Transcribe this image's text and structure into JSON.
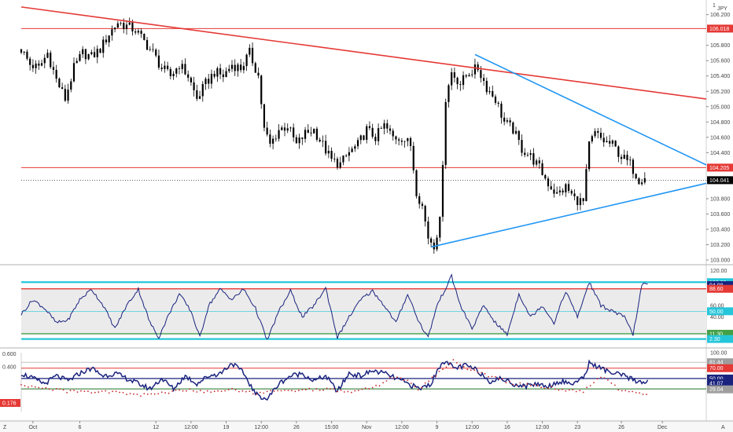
{
  "header": {
    "currency_label": "JPY",
    "scale_marker": "1"
  },
  "colors": {
    "candle": "#000000",
    "resistance": "#e53935",
    "triangle": "#2196f3",
    "oscillator": "#1a237e",
    "overbought": "#26c6da",
    "oversold": "#43a047",
    "dots": "#c62828",
    "last_price_bg": "#000000"
  },
  "chart_data": [
    {
      "type": "candlestick",
      "panel": "price",
      "y_ticks": [
        "106.200",
        "106.018",
        "105.800",
        "105.600",
        "105.400",
        "105.200",
        "105.000",
        "104.800",
        "104.600",
        "104.400",
        "104.205",
        "104.041",
        "103.800",
        "103.600",
        "103.400",
        "103.200",
        "103.000"
      ],
      "ylim": [
        102.99,
        106.35
      ],
      "levels": [
        {
          "name": "resistance-upper",
          "value": 106.018,
          "label": "106.018",
          "color": "#e53935"
        },
        {
          "name": "resistance-lower",
          "value": 104.205,
          "label": "104.205",
          "color": "#e53935"
        },
        {
          "name": "last-price",
          "value": 104.041,
          "label": "104.041",
          "color": "#000000"
        }
      ],
      "trendlines": [
        {
          "name": "descending-resistance",
          "from": [
            0,
            106.3
          ],
          "to": [
            234,
            105.1
          ],
          "color": "#e53935"
        },
        {
          "name": "triangle-upper",
          "from": [
            155,
            105.68
          ],
          "to": [
            234,
            104.24
          ],
          "color": "#2196f3"
        },
        {
          "name": "triangle-lower",
          "from": [
            140,
            103.17
          ],
          "to": [
            234,
            104.0
          ],
          "color": "#2196f3"
        }
      ],
      "anchors": [
        [
          0,
          105.75
        ],
        [
          3,
          105.55
        ],
        [
          6,
          105.5
        ],
        [
          9,
          105.7
        ],
        [
          12,
          105.35
        ],
        [
          15,
          105.1
        ],
        [
          18,
          105.5
        ],
        [
          21,
          105.7
        ],
        [
          24,
          105.65
        ],
        [
          27,
          105.75
        ],
        [
          30,
          105.95
        ],
        [
          33,
          106.1
        ],
        [
          36,
          106.05
        ],
        [
          39,
          106.0
        ],
        [
          42,
          105.85
        ],
        [
          45,
          105.7
        ],
        [
          48,
          105.5
        ],
        [
          51,
          105.4
        ],
        [
          54,
          105.55
        ],
        [
          57,
          105.4
        ],
        [
          60,
          105.1
        ],
        [
          63,
          105.3
        ],
        [
          66,
          105.45
        ],
        [
          69,
          105.4
        ],
        [
          72,
          105.55
        ],
        [
          75,
          105.5
        ],
        [
          78,
          105.7
        ],
        [
          81,
          105.4
        ],
        [
          83,
          104.7
        ],
        [
          85,
          104.5
        ],
        [
          88,
          104.7
        ],
        [
          91,
          104.75
        ],
        [
          94,
          104.5
        ],
        [
          97,
          104.65
        ],
        [
          100,
          104.7
        ],
        [
          103,
          104.5
        ],
        [
          106,
          104.3
        ],
        [
          109,
          104.25
        ],
        [
          112,
          104.4
        ],
        [
          115,
          104.5
        ],
        [
          118,
          104.7
        ],
        [
          121,
          104.6
        ],
        [
          124,
          104.75
        ],
        [
          127,
          104.6
        ],
        [
          130,
          104.6
        ],
        [
          133,
          104.5
        ],
        [
          135,
          103.9
        ],
        [
          137,
          103.7
        ],
        [
          139,
          103.3
        ],
        [
          141,
          103.2
        ],
        [
          143,
          103.5
        ],
        [
          145,
          105.1
        ],
        [
          147,
          105.45
        ],
        [
          150,
          105.3
        ],
        [
          153,
          105.45
        ],
        [
          156,
          105.5
        ],
        [
          159,
          105.25
        ],
        [
          162,
          105.1
        ],
        [
          165,
          104.8
        ],
        [
          168,
          104.7
        ],
        [
          171,
          104.45
        ],
        [
          174,
          104.35
        ],
        [
          177,
          104.2
        ],
        [
          180,
          104.0
        ],
        [
          183,
          103.85
        ],
        [
          186,
          103.95
        ],
        [
          189,
          103.8
        ],
        [
          192,
          103.75
        ],
        [
          194,
          104.5
        ],
        [
          196,
          104.65
        ],
        [
          199,
          104.55
        ],
        [
          202,
          104.5
        ],
        [
          205,
          104.35
        ],
        [
          208,
          104.25
        ],
        [
          211,
          104.05
        ],
        [
          213,
          104.1
        ]
      ],
      "x_range": [
        0,
        234
      ],
      "x_ticks": [
        {
          "x": 4,
          "label": "Oct"
        },
        {
          "x": 20,
          "label": "6"
        },
        {
          "x": 46,
          "label": "12"
        },
        {
          "x": 58,
          "label": "12:00"
        },
        {
          "x": 70,
          "label": "19"
        },
        {
          "x": 82,
          "label": "12:00"
        },
        {
          "x": 94,
          "label": "26"
        },
        {
          "x": 106,
          "label": "15:00"
        },
        {
          "x": 118,
          "label": "Nov"
        },
        {
          "x": 130,
          "label": "12:00"
        },
        {
          "x": 142,
          "label": "9"
        },
        {
          "x": 154,
          "label": "12:00"
        },
        {
          "x": 166,
          "label": "16"
        },
        {
          "x": 178,
          "label": "12:00"
        },
        {
          "x": 190,
          "label": "23"
        },
        {
          "x": 205,
          "label": "26"
        },
        {
          "x": 219,
          "label": "Dec"
        }
      ]
    },
    {
      "type": "line",
      "panel": "oscillator-1",
      "ylim": [
        -5,
        122
      ],
      "y_ticks": [
        "120.00",
        "100.00",
        "94.98",
        "88.60",
        "60.00",
        "50.00",
        "40.00",
        "11.30",
        "2.30"
      ],
      "levels": [
        {
          "name": "upper-band",
          "value": 100,
          "label": "100.00",
          "color": "#26c6da"
        },
        {
          "name": "current",
          "value": 94.98,
          "label": "94.98",
          "color": "#1a237e"
        },
        {
          "name": "overbought",
          "value": 88.6,
          "label": "88.60",
          "color": "#e53935"
        },
        {
          "name": "mid",
          "value": 50,
          "label": "50.00",
          "color": "#26c6da"
        },
        {
          "name": "oversold",
          "value": 11.3,
          "label": "11.30",
          "color": "#43a047"
        },
        {
          "name": "lower-band",
          "value": 2.3,
          "label": "2.30",
          "color": "#26c6da"
        }
      ],
      "anchors": [
        [
          0,
          45
        ],
        [
          4,
          70
        ],
        [
          8,
          55
        ],
        [
          12,
          30
        ],
        [
          16,
          35
        ],
        [
          20,
          70
        ],
        [
          24,
          88
        ],
        [
          28,
          60
        ],
        [
          32,
          20
        ],
        [
          36,
          60
        ],
        [
          40,
          88
        ],
        [
          44,
          30
        ],
        [
          47,
          5
        ],
        [
          50,
          40
        ],
        [
          54,
          80
        ],
        [
          58,
          50
        ],
        [
          61,
          5
        ],
        [
          64,
          60
        ],
        [
          68,
          88
        ],
        [
          72,
          70
        ],
        [
          76,
          88
        ],
        [
          80,
          55
        ],
        [
          84,
          0
        ],
        [
          88,
          50
        ],
        [
          92,
          85
        ],
        [
          96,
          40
        ],
        [
          100,
          60
        ],
        [
          104,
          90
        ],
        [
          108,
          5
        ],
        [
          112,
          40
        ],
        [
          116,
          70
        ],
        [
          120,
          85
        ],
        [
          124,
          60
        ],
        [
          128,
          30
        ],
        [
          132,
          80
        ],
        [
          136,
          30
        ],
        [
          139,
          5
        ],
        [
          142,
          60
        ],
        [
          147,
          110
        ],
        [
          150,
          60
        ],
        [
          154,
          20
        ],
        [
          158,
          60
        ],
        [
          162,
          30
        ],
        [
          166,
          10
        ],
        [
          170,
          80
        ],
        [
          174,
          40
        ],
        [
          178,
          60
        ],
        [
          182,
          30
        ],
        [
          186,
          85
        ],
        [
          190,
          40
        ],
        [
          194,
          100
        ],
        [
          198,
          60
        ],
        [
          202,
          50
        ],
        [
          206,
          40
        ],
        [
          209,
          10
        ],
        [
          212,
          95
        ],
        [
          214,
          98
        ]
      ]
    },
    {
      "type": "line",
      "panel": "oscillator-2",
      "ylim": [
        -14,
        100
      ],
      "left_ticks": [
        "0.600",
        "0.400",
        "0.176"
      ],
      "y_ticks": [
        "100.00",
        "81.44",
        "70.00",
        "50.00",
        "41.07",
        "30.00",
        "29.04"
      ],
      "levels": [
        {
          "name": "upper-ref",
          "value": 81.44,
          "label": "81.44",
          "color": "#9e9e9e"
        },
        {
          "name": "overbought",
          "value": 70,
          "label": "70.00",
          "color": "#e53935"
        },
        {
          "name": "mid",
          "value": 50,
          "label": "50.00",
          "color": "#1a237e"
        },
        {
          "name": "current",
          "value": 41.07,
          "label": "41.07",
          "color": "#1a237e"
        },
        {
          "name": "oversold",
          "value": 30,
          "label": "30.00",
          "color": "#43a047"
        },
        {
          "name": "lower-ref",
          "value": 29.04,
          "label": "29.04",
          "color": "#9e9e9e"
        }
      ],
      "left_value": "0.176",
      "anchors": [
        [
          0,
          60
        ],
        [
          4,
          50
        ],
        [
          8,
          40
        ],
        [
          12,
          55
        ],
        [
          16,
          45
        ],
        [
          20,
          60
        ],
        [
          24,
          70
        ],
        [
          28,
          55
        ],
        [
          32,
          60
        ],
        [
          36,
          50
        ],
        [
          40,
          40
        ],
        [
          44,
          30
        ],
        [
          48,
          50
        ],
        [
          52,
          30
        ],
        [
          56,
          55
        ],
        [
          60,
          40
        ],
        [
          64,
          55
        ],
        [
          68,
          60
        ],
        [
          72,
          80
        ],
        [
          76,
          60
        ],
        [
          80,
          20
        ],
        [
          84,
          10
        ],
        [
          88,
          40
        ],
        [
          92,
          55
        ],
        [
          96,
          60
        ],
        [
          100,
          45
        ],
        [
          104,
          55
        ],
        [
          108,
          25
        ],
        [
          112,
          60
        ],
        [
          116,
          55
        ],
        [
          120,
          65
        ],
        [
          124,
          60
        ],
        [
          128,
          50
        ],
        [
          132,
          40
        ],
        [
          136,
          30
        ],
        [
          140,
          40
        ],
        [
          144,
          85
        ],
        [
          148,
          70
        ],
        [
          152,
          75
        ],
        [
          156,
          65
        ],
        [
          160,
          45
        ],
        [
          164,
          50
        ],
        [
          168,
          40
        ],
        [
          172,
          35
        ],
        [
          176,
          40
        ],
        [
          180,
          35
        ],
        [
          184,
          45
        ],
        [
          188,
          40
        ],
        [
          192,
          50
        ],
        [
          194,
          80
        ],
        [
          198,
          70
        ],
        [
          202,
          60
        ],
        [
          206,
          55
        ],
        [
          210,
          45
        ],
        [
          214,
          43
        ]
      ],
      "dots": [
        [
          0,
          35
        ],
        [
          8,
          30
        ],
        [
          16,
          25
        ],
        [
          24,
          22
        ],
        [
          32,
          25
        ],
        [
          40,
          18
        ],
        [
          48,
          22
        ],
        [
          56,
          28
        ],
        [
          64,
          25
        ],
        [
          72,
          30
        ],
        [
          80,
          22
        ],
        [
          88,
          25
        ],
        [
          96,
          28
        ],
        [
          104,
          30
        ],
        [
          112,
          25
        ],
        [
          120,
          30
        ],
        [
          128,
          55
        ],
        [
          132,
          45
        ],
        [
          136,
          28
        ],
        [
          144,
          70
        ],
        [
          148,
          85
        ],
        [
          152,
          70
        ],
        [
          160,
          55
        ],
        [
          168,
          40
        ],
        [
          176,
          35
        ],
        [
          184,
          30
        ],
        [
          192,
          25
        ],
        [
          198,
          55
        ],
        [
          204,
          30
        ],
        [
          210,
          20
        ],
        [
          214,
          22
        ]
      ]
    }
  ],
  "right_badges": [
    {
      "name": "badge-106018",
      "text": "106.018",
      "bg": "#e53935",
      "panel": 0,
      "value": 106.018
    },
    {
      "name": "badge-104205",
      "text": "104.205",
      "bg": "#e53935",
      "panel": 0,
      "value": 104.205
    },
    {
      "name": "badge-104041",
      "text": "104.041",
      "bg": "#000000",
      "panel": 0,
      "value": 104.041
    },
    {
      "name": "badge-100",
      "text": "100.00",
      "bg": "#26c6da",
      "panel": 1,
      "value": 100
    },
    {
      "name": "badge-9498",
      "text": "94.98",
      "bg": "#1a237e",
      "panel": 1,
      "value": 94.98
    },
    {
      "name": "badge-8860",
      "text": "88.60",
      "bg": "#e53935",
      "panel": 1,
      "value": 88.6
    },
    {
      "name": "badge-50",
      "text": "50.00",
      "bg": "#26c6da",
      "panel": 1,
      "value": 50
    },
    {
      "name": "badge-1130",
      "text": "11.30",
      "bg": "#43a047",
      "panel": 1,
      "value": 11.3
    },
    {
      "name": "badge-230",
      "text": "2.30",
      "bg": "#26c6da",
      "panel": 1,
      "value": 2.3
    },
    {
      "name": "badge-8144",
      "text": "81.44",
      "bg": "#9e9e9e",
      "panel": 2,
      "value": 81.44
    },
    {
      "name": "badge-70",
      "text": "70.00",
      "bg": "#e53935",
      "panel": 2,
      "value": 70
    },
    {
      "name": "badge-50b",
      "text": "50.00",
      "bg": "#1a237e",
      "panel": 2,
      "value": 50
    },
    {
      "name": "badge-4107",
      "text": "41.07",
      "bg": "#1a237e",
      "panel": 2,
      "value": 41.07
    },
    {
      "name": "badge-30",
      "text": "30.00",
      "bg": "#1a237e",
      "panel": 2,
      "value": 30
    },
    {
      "name": "badge-2904",
      "text": "29.04",
      "bg": "#9e9e9e",
      "panel": 2,
      "value": 29.04
    }
  ],
  "footer": {
    "left_letter": "Z",
    "right_letter": "A"
  }
}
